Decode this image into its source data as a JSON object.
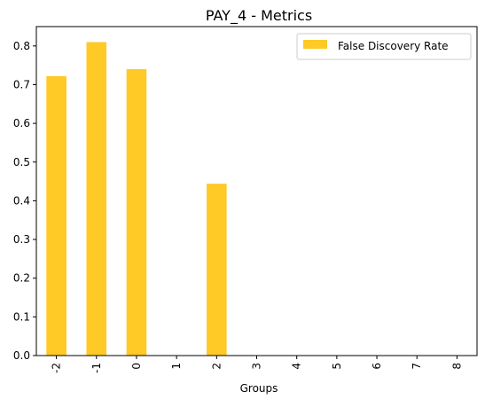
{
  "chart_data": {
    "type": "bar",
    "title": "PAY_4 - Metrics",
    "xlabel": "Groups",
    "ylabel": "",
    "categories": [
      "-2",
      "-1",
      "0",
      "1",
      "2",
      "3",
      "4",
      "5",
      "6",
      "7",
      "8"
    ],
    "series": [
      {
        "name": "False Discovery Rate",
        "values": [
          0.722,
          0.81,
          0.74,
          0,
          0.444,
          0,
          0,
          0,
          0,
          0,
          0
        ],
        "color": "#ffc926"
      }
    ],
    "ylim": [
      0,
      0.85
    ],
    "yticks": [
      "0.0",
      "0.1",
      "0.2",
      "0.3",
      "0.4",
      "0.5",
      "0.6",
      "0.7",
      "0.8"
    ],
    "grid": false,
    "legend_position": "top-right"
  }
}
